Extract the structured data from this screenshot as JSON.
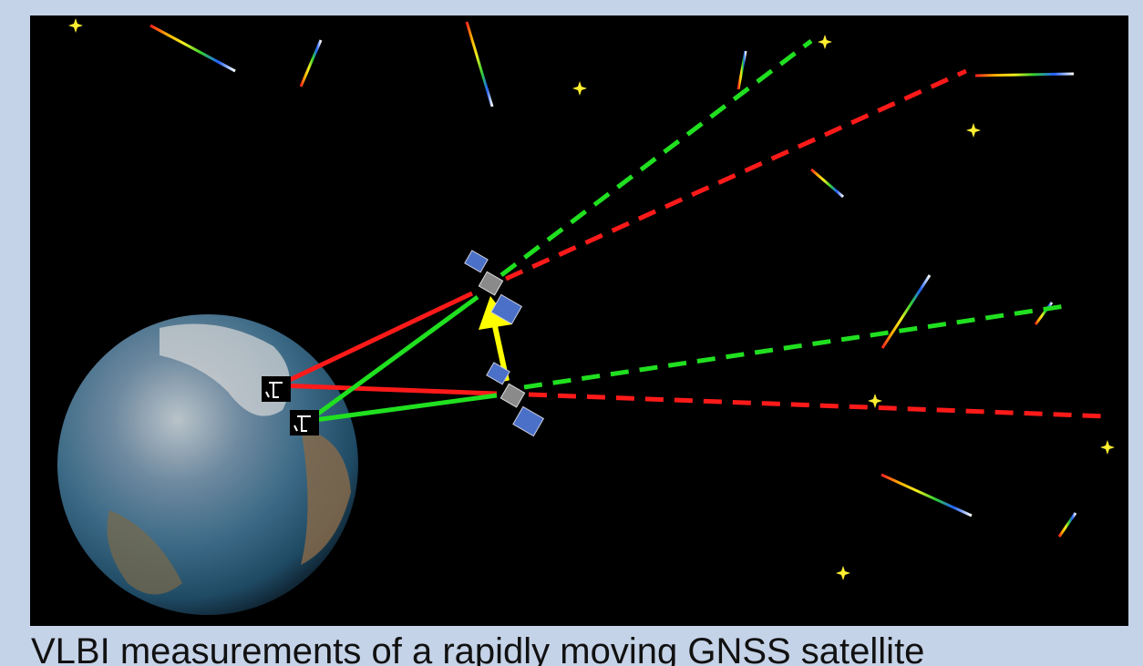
{
  "caption": "VLBI measurements of a rapidly moving GNSS satellite"
}
